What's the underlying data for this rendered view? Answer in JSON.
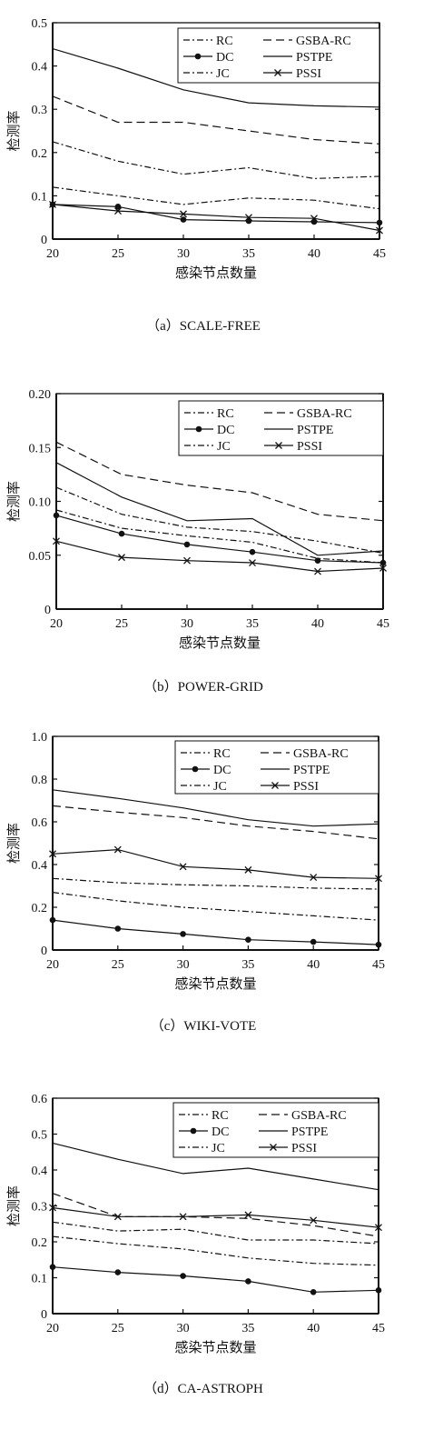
{
  "chart_data": [
    {
      "type": "line",
      "caption": "（a）SCALE-FREE",
      "xlabel": "感染节点数量",
      "ylabel": "检测率",
      "x": [
        20,
        25,
        30,
        35,
        40,
        45
      ],
      "xticks": [
        "20",
        "25",
        "30",
        "35",
        "40",
        "45"
      ],
      "ylim": [
        0,
        0.5
      ],
      "yticks": [
        "0",
        "0.1",
        "0.2",
        "0.3",
        "0.4",
        "0.5"
      ],
      "ytick_values": [
        0,
        0.1,
        0.2,
        0.3,
        0.4,
        0.5
      ],
      "legend_position": "top-right",
      "series": [
        {
          "name": "RC",
          "style": "dashdot",
          "values": [
            0.12,
            0.1,
            0.08,
            0.095,
            0.09,
            0.07
          ]
        },
        {
          "name": "GSBA-RC",
          "style": "dashed",
          "values": [
            0.33,
            0.27,
            0.27,
            0.25,
            0.23,
            0.22
          ]
        },
        {
          "name": "DC",
          "style": "dot-marker",
          "values": [
            0.08,
            0.075,
            0.045,
            0.042,
            0.04,
            0.038
          ]
        },
        {
          "name": "PSTPE",
          "style": "solid",
          "values": [
            0.44,
            0.395,
            0.345,
            0.315,
            0.308,
            0.305
          ]
        },
        {
          "name": "JC",
          "style": "dashdot",
          "values": [
            0.225,
            0.18,
            0.15,
            0.165,
            0.14,
            0.145
          ]
        },
        {
          "name": "PSSI",
          "style": "x-marker",
          "values": [
            0.08,
            0.065,
            0.058,
            0.05,
            0.048,
            0.02
          ]
        }
      ]
    },
    {
      "type": "line",
      "caption": "（b）POWER-GRID",
      "xlabel": "感染节点数量",
      "ylabel": "检测率",
      "x": [
        20,
        25,
        30,
        35,
        40,
        45
      ],
      "xticks": [
        "20",
        "25",
        "30",
        "35",
        "40",
        "45"
      ],
      "ylim": [
        0,
        0.2
      ],
      "yticks": [
        "0",
        "0.05",
        "0.10",
        "0.15",
        "0.20"
      ],
      "ytick_values": [
        0,
        0.05,
        0.1,
        0.15,
        0.2
      ],
      "legend_position": "top-right",
      "series": [
        {
          "name": "RC",
          "style": "dashdot",
          "values": [
            0.092,
            0.075,
            0.068,
            0.062,
            0.047,
            0.043
          ]
        },
        {
          "name": "GSBA-RC",
          "style": "dashed",
          "values": [
            0.155,
            0.125,
            0.115,
            0.108,
            0.088,
            0.082
          ]
        },
        {
          "name": "DC",
          "style": "dot-marker",
          "values": [
            0.087,
            0.07,
            0.06,
            0.053,
            0.045,
            0.043
          ]
        },
        {
          "name": "PSTPE",
          "style": "solid",
          "values": [
            0.136,
            0.104,
            0.082,
            0.084,
            0.05,
            0.054
          ]
        },
        {
          "name": "JC",
          "style": "dashdot",
          "values": [
            0.113,
            0.088,
            0.076,
            0.072,
            0.063,
            0.052
          ]
        },
        {
          "name": "PSSI",
          "style": "x-marker",
          "values": [
            0.063,
            0.048,
            0.045,
            0.043,
            0.035,
            0.038
          ]
        }
      ]
    },
    {
      "type": "line",
      "caption": "（c）WIKI-VOTE",
      "xlabel": "感染节点数量",
      "ylabel": "检测率",
      "x": [
        20,
        25,
        30,
        35,
        40,
        45
      ],
      "xticks": [
        "20",
        "25",
        "30",
        "35",
        "40",
        "45"
      ],
      "ylim": [
        0,
        1.0
      ],
      "yticks": [
        "0",
        "0.2",
        "0.4",
        "0.6",
        "0.8",
        "1.0"
      ],
      "ytick_values": [
        0,
        0.2,
        0.4,
        0.6,
        0.8,
        1.0
      ],
      "legend_position": "top-right",
      "series": [
        {
          "name": "RC",
          "style": "dashdot",
          "values": [
            0.335,
            0.315,
            0.305,
            0.3,
            0.29,
            0.285
          ]
        },
        {
          "name": "GSBA-RC",
          "style": "dashed",
          "values": [
            0.675,
            0.645,
            0.62,
            0.58,
            0.555,
            0.52
          ]
        },
        {
          "name": "DC",
          "style": "dot-marker",
          "values": [
            0.14,
            0.1,
            0.075,
            0.048,
            0.038,
            0.025
          ]
        },
        {
          "name": "PSTPE",
          "style": "solid",
          "values": [
            0.75,
            0.71,
            0.665,
            0.61,
            0.58,
            0.59
          ]
        },
        {
          "name": "JC",
          "style": "dashdot",
          "values": [
            0.27,
            0.23,
            0.2,
            0.18,
            0.16,
            0.14
          ]
        },
        {
          "name": "PSSI",
          "style": "x-marker",
          "values": [
            0.45,
            0.47,
            0.39,
            0.375,
            0.34,
            0.335
          ]
        }
      ]
    },
    {
      "type": "line",
      "caption": "（d）CA-ASTROPH",
      "xlabel": "感染节点数量",
      "ylabel": "检测率",
      "x": [
        20,
        25,
        30,
        35,
        40,
        45
      ],
      "xticks": [
        "20",
        "25",
        "30",
        "35",
        "40",
        "45"
      ],
      "ylim": [
        0,
        0.6
      ],
      "yticks": [
        "0",
        "0.1",
        "0.2",
        "0.3",
        "0.4",
        "0.5",
        "0.6"
      ],
      "ytick_values": [
        0,
        0.1,
        0.2,
        0.3,
        0.4,
        0.5,
        0.6
      ],
      "legend_position": "top-right",
      "series": [
        {
          "name": "RC",
          "style": "dashdot",
          "values": [
            0.255,
            0.23,
            0.235,
            0.205,
            0.205,
            0.195
          ]
        },
        {
          "name": "GSBA-RC",
          "style": "dashed",
          "values": [
            0.335,
            0.27,
            0.27,
            0.265,
            0.245,
            0.215
          ]
        },
        {
          "name": "DC",
          "style": "dot-marker",
          "values": [
            0.13,
            0.115,
            0.105,
            0.09,
            0.06,
            0.065
          ]
        },
        {
          "name": "PSTPE",
          "style": "solid",
          "values": [
            0.475,
            0.43,
            0.39,
            0.405,
            0.375,
            0.345
          ]
        },
        {
          "name": "JC",
          "style": "dashdot",
          "values": [
            0.215,
            0.195,
            0.18,
            0.155,
            0.14,
            0.135
          ]
        },
        {
          "name": "PSSI",
          "style": "x-marker",
          "values": [
            0.295,
            0.27,
            0.27,
            0.275,
            0.26,
            0.24
          ]
        }
      ]
    }
  ]
}
